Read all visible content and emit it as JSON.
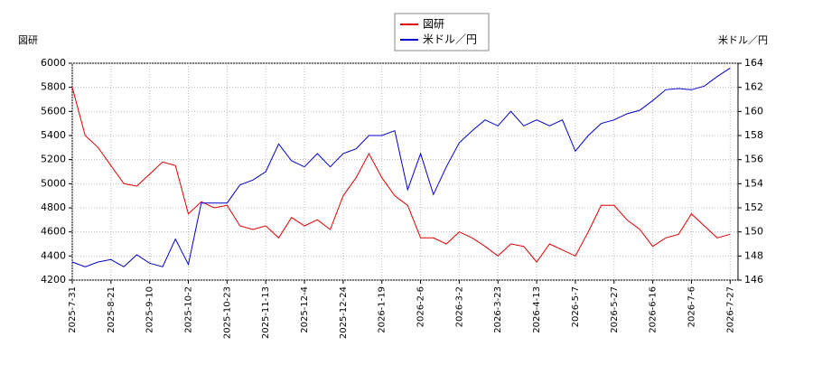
{
  "chart_data": {
    "type": "line",
    "y_label": "図研",
    "y2_label": "米ドル／円",
    "categories": [
      "2025-7-31",
      null,
      null,
      "2025-8-21",
      null,
      null,
      "2025-9-10",
      null,
      null,
      "2025-10-2",
      null,
      null,
      "2025-10-23",
      null,
      null,
      "2025-11-13",
      null,
      null,
      "2025-12-4",
      null,
      null,
      "2025-12-24",
      null,
      null,
      "2026-1-19",
      null,
      null,
      "2026-2-6",
      null,
      null,
      "2026-3-2",
      null,
      null,
      "2026-3-23",
      null,
      null,
      "2026-4-13",
      null,
      null,
      "2026-5-7",
      null,
      null,
      "2026-5-27",
      null,
      null,
      "2026-6-16",
      null,
      null,
      "2026-7-6",
      null,
      null,
      "2026-7-27"
    ],
    "series": [
      {
        "name": "図研",
        "color": "#dd0000",
        "values": [
          5800,
          5400,
          5300,
          5150,
          5000,
          4980,
          5080,
          5180,
          5150,
          4750,
          4850,
          4800,
          4820,
          4650,
          4620,
          4650,
          4550,
          4720,
          4650,
          4700,
          4620,
          4900,
          5050,
          5250,
          5050,
          4900,
          4820,
          4550,
          4550,
          4500,
          4600,
          4550,
          4480,
          4400,
          4500,
          4480,
          4350,
          4500,
          4450,
          4400,
          4600,
          4820,
          4820,
          4700,
          4620,
          4480,
          4550,
          4580,
          4750,
          4650,
          4550,
          4580
        ]
      },
      {
        "name": "米ドル／円",
        "color": "#0000cc",
        "axis": "y2",
        "values": [
          147.5,
          147.1,
          147.5,
          147.7,
          147.1,
          148.1,
          147.4,
          147.1,
          149.4,
          147.3,
          152.4,
          152.4,
          152.4,
          153.9,
          154.3,
          155,
          157.3,
          155.9,
          155.4,
          156.5,
          155.4,
          156.5,
          156.9,
          158,
          158,
          158.4,
          153.5,
          156.5,
          153.1,
          155.4,
          157.4,
          158.4,
          159.3,
          158.8,
          160,
          158.8,
          159.3,
          158.8,
          159.3,
          156.7,
          158,
          159,
          159.3,
          159.8,
          160.1,
          160.9,
          161.8,
          161.9,
          161.8,
          162.1,
          162.9,
          163.6
        ]
      }
    ],
    "ylim": [
      4200,
      6000
    ],
    "yticks": [
      4200,
      4400,
      4600,
      4800,
      5000,
      5200,
      5400,
      5600,
      5800,
      6000
    ],
    "y2lim": [
      146,
      164
    ],
    "y2ticks": [
      146,
      148,
      150,
      152,
      154,
      156,
      158,
      160,
      162,
      164
    ],
    "grid": true
  }
}
